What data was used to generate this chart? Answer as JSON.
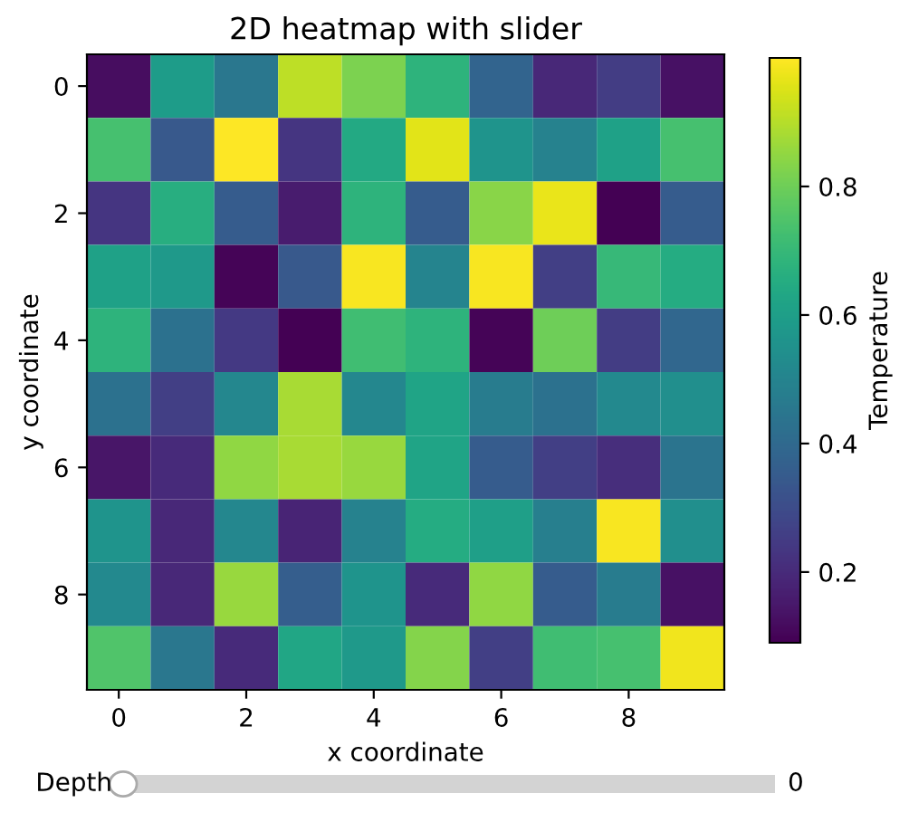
{
  "chart_data": {
    "type": "heatmap",
    "title": "2D heatmap with slider",
    "xlabel": "x coordinate",
    "ylabel": "y coordinate",
    "clabel": "Temperature",
    "categories": [
      "0",
      null,
      "2",
      null,
      "4",
      null,
      "6",
      null,
      "8",
      null
    ],
    "y_categories": [
      "0",
      null,
      "2",
      null,
      "4",
      null,
      "6",
      null,
      "8",
      null
    ],
    "cells": [
      [
        0.12,
        0.59,
        0.45,
        0.91,
        0.82,
        0.68,
        0.38,
        0.19,
        0.25,
        0.13
      ],
      [
        0.73,
        0.34,
        1.0,
        0.23,
        0.64,
        0.96,
        0.56,
        0.49,
        0.61,
        0.73
      ],
      [
        0.23,
        0.66,
        0.35,
        0.16,
        0.68,
        0.35,
        0.84,
        0.97,
        0.09,
        0.35
      ],
      [
        0.61,
        0.58,
        0.1,
        0.34,
        0.99,
        0.5,
        0.99,
        0.26,
        0.7,
        0.65
      ],
      [
        0.68,
        0.43,
        0.24,
        0.09,
        0.72,
        0.68,
        0.1,
        0.8,
        0.25,
        0.39
      ],
      [
        0.43,
        0.26,
        0.51,
        0.88,
        0.51,
        0.62,
        0.47,
        0.43,
        0.52,
        0.54
      ],
      [
        0.14,
        0.2,
        0.85,
        0.88,
        0.86,
        0.62,
        0.35,
        0.26,
        0.21,
        0.44
      ],
      [
        0.56,
        0.19,
        0.51,
        0.18,
        0.49,
        0.65,
        0.6,
        0.48,
        0.99,
        0.54
      ],
      [
        0.52,
        0.19,
        0.86,
        0.36,
        0.56,
        0.2,
        0.85,
        0.35,
        0.47,
        0.13
      ],
      [
        0.75,
        0.45,
        0.2,
        0.63,
        0.58,
        0.83,
        0.26,
        0.72,
        0.73,
        0.98
      ]
    ],
    "clim": [
      0.09,
      1.0
    ],
    "cticks": [
      0.2,
      0.4,
      0.6,
      0.8
    ],
    "annotations": [
      "Depth",
      "0"
    ]
  }
}
